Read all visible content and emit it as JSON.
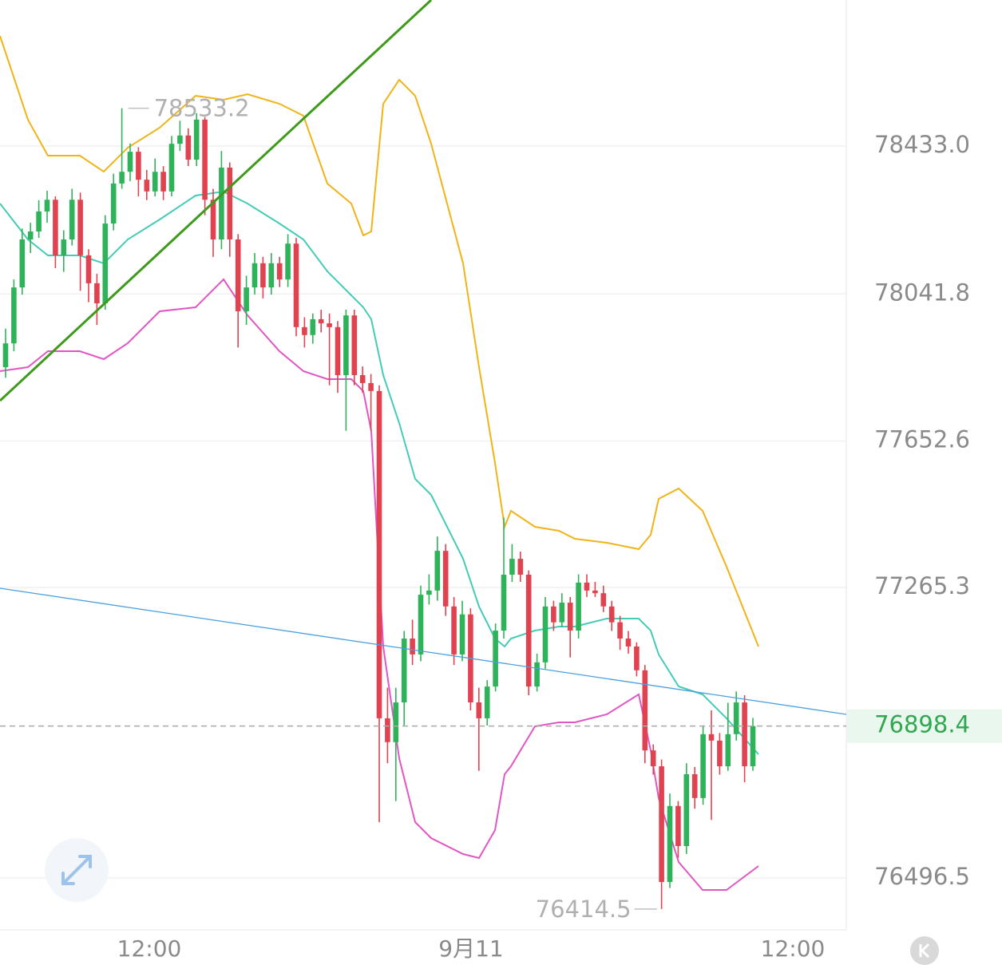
{
  "chart_data": {
    "type": "candlestick",
    "up_color": "#2fb35a",
    "down_color": "#e0434f",
    "xlim": [
      -0.673,
      101.25
    ],
    "ylim": [
      76359.2,
      78819.5
    ],
    "yticks": [
      {
        "value": 78433,
        "label": "78433.0"
      },
      78041.8,
      77652.6,
      77265.3,
      76496.5
    ],
    "xticks": [
      {
        "value": 17.31,
        "label": "12:00"
      },
      {
        "value": 56.06,
        "label": "9月11"
      },
      {
        "value": 94.81,
        "label": "12:00"
      }
    ],
    "grid": true,
    "last_price": 76898.4,
    "high_marker": 78533.2,
    "low_marker": 76414.5,
    "ohlc": [
      [
        77848,
        77950,
        77820,
        77911
      ],
      [
        77911,
        78080,
        77890,
        78059
      ],
      [
        78059,
        78215,
        78040,
        78186
      ],
      [
        78186,
        78230,
        78150,
        78207
      ],
      [
        78207,
        78290,
        78190,
        78260
      ],
      [
        78260,
        78315,
        78230,
        78291
      ],
      [
        78291,
        78300,
        78110,
        78144
      ],
      [
        78144,
        78210,
        78100,
        78186
      ],
      [
        78186,
        78320,
        78170,
        78291
      ],
      [
        78291,
        78310,
        78050,
        78144
      ],
      [
        78144,
        78160,
        78020,
        78070
      ],
      [
        78070,
        78095,
        77960,
        78017
      ],
      [
        78017,
        78250,
        78000,
        78228
      ],
      [
        78228,
        78360,
        78210,
        78334
      ],
      [
        78334,
        78533.2,
        78320,
        78365
      ],
      [
        78365,
        78440,
        78340,
        78418
      ],
      [
        78418,
        78430,
        78300,
        78344
      ],
      [
        78344,
        78370,
        78290,
        78313
      ],
      [
        78313,
        78400,
        78300,
        78365
      ],
      [
        78365,
        78380,
        78290,
        78313
      ],
      [
        78313,
        78460,
        78300,
        78439
      ],
      [
        78439,
        78500,
        78420,
        78461
      ],
      [
        78461,
        78480,
        78380,
        78397
      ],
      [
        78397,
        78520,
        78380,
        78503
      ],
      [
        78503,
        78510,
        78250,
        78291
      ],
      [
        78291,
        78320,
        78140,
        78186
      ],
      [
        78186,
        78420,
        78160,
        78376
      ],
      [
        78376,
        78390,
        78140,
        78186
      ],
      [
        78186,
        78200,
        77900,
        77996
      ],
      [
        77996,
        78090,
        77960,
        78059
      ],
      [
        78059,
        78150,
        78040,
        78123
      ],
      [
        78123,
        78140,
        78030,
        78059
      ],
      [
        78059,
        78150,
        78040,
        78123
      ],
      [
        78123,
        78140,
        78060,
        78080
      ],
      [
        78080,
        78200,
        78060,
        78175
      ],
      [
        78175,
        78190,
        77930,
        77954
      ],
      [
        77954,
        77980,
        77900,
        77933
      ],
      [
        77933,
        77990,
        77910,
        77975
      ],
      [
        77975,
        78000,
        77940,
        77964
      ],
      [
        77964,
        77990,
        77800,
        77954
      ],
      [
        77954,
        77970,
        77780,
        77827
      ],
      [
        77827,
        78000,
        77680,
        77985
      ],
      [
        77985,
        78000,
        77800,
        77827
      ],
      [
        77827,
        77850,
        77780,
        77806
      ],
      [
        77806,
        77830,
        77680,
        77785
      ],
      [
        77785,
        77800,
        76644,
        76919
      ],
      [
        76919,
        77000,
        76800,
        76856
      ],
      [
        76856,
        77000,
        76700,
        76961
      ],
      [
        76961,
        77150,
        76900,
        77130
      ],
      [
        77130,
        77180,
        77060,
        77088
      ],
      [
        77088,
        77270,
        77070,
        77246
      ],
      [
        77246,
        77300,
        77220,
        77257
      ],
      [
        77257,
        77400,
        77230,
        77362
      ],
      [
        77362,
        77380,
        77190,
        77215
      ],
      [
        77215,
        77240,
        77060,
        77088
      ],
      [
        77088,
        77230,
        77070,
        77194
      ],
      [
        77194,
        77210,
        76940,
        76961
      ],
      [
        76961,
        77000,
        76780,
        76919
      ],
      [
        76919,
        77020,
        76900,
        77003
      ],
      [
        77003,
        77170,
        76990,
        77151
      ],
      [
        77151,
        77450,
        77130,
        77299
      ],
      [
        77299,
        77380,
        77280,
        77341
      ],
      [
        77341,
        77360,
        77280,
        77299
      ],
      [
        77299,
        77310,
        76980,
        77003
      ],
      [
        77003,
        77090,
        76990,
        77067
      ],
      [
        77067,
        77240,
        77050,
        77215
      ],
      [
        77215,
        77230,
        77150,
        77173
      ],
      [
        77173,
        77250,
        77160,
        77225
      ],
      [
        77225,
        77240,
        77080,
        77151
      ],
      [
        77151,
        77300,
        77130,
        77278
      ],
      [
        77278,
        77300,
        77240,
        77257
      ],
      [
        77257,
        77280,
        77240,
        77250
      ],
      [
        77250,
        77270,
        77200,
        77215
      ],
      [
        77215,
        77230,
        77150,
        77173
      ],
      [
        77173,
        77190,
        77100,
        77130
      ],
      [
        77130,
        77150,
        77090,
        77109
      ],
      [
        77109,
        77120,
        77030,
        77046
      ],
      [
        77046,
        77060,
        76800,
        76834
      ],
      [
        76834,
        76850,
        76770,
        76792
      ],
      [
        76792,
        76810,
        76414.5,
        76486
      ],
      [
        76486,
        76720,
        76470,
        76687
      ],
      [
        76687,
        76700,
        76550,
        76581
      ],
      [
        76581,
        76800,
        76560,
        76771
      ],
      [
        76771,
        76790,
        76680,
        76708
      ],
      [
        76708,
        76900,
        76690,
        76877
      ],
      [
        76877,
        76940,
        76650,
        76860
      ],
      [
        76860,
        76880,
        76770,
        76792
      ],
      [
        76792,
        76960,
        76780,
        76877
      ],
      [
        76877,
        76990,
        76860,
        76961
      ],
      [
        76961,
        76980,
        76750,
        76792
      ],
      [
        76792,
        76920,
        76780,
        76898.4
      ]
    ],
    "band_x": [
      -0.67,
      2.69,
      5.1,
      8.94,
      11.83,
      14.71,
      18.56,
      22.88,
      26.25,
      29.13,
      32.98,
      35.87,
      38.75,
      41.63,
      43.08,
      44.04,
      45.48,
      47.4,
      49.33,
      51.25,
      55.1,
      57.02,
      58.94,
      60.1,
      60.87,
      63.75,
      66.63,
      68.56,
      72.4,
      76.25,
      77.69,
      78.65,
      81.06,
      83.94,
      86.83,
      90.67
    ],
    "bands": [
      {
        "color": "#f0b418",
        "values": [
          78724.5,
          78502.7,
          78407.7,
          78407.7,
          78365.5,
          78428.8,
          78481.6,
          78566.1,
          78555.5,
          78570.3,
          78545.0,
          78513.3,
          78333.8,
          78281.0,
          78196.5,
          78207.1,
          78545.0,
          78608.3,
          78566.1,
          78439.4,
          78122.6,
          77848.1,
          77594.7,
          77425.7,
          77467.9,
          77425.7,
          77415.2,
          77394.0,
          77383.5,
          77366.6,
          77404.6,
          77499.6,
          77527.1,
          77467.9,
          77320.1,
          77108.9
        ]
      },
      {
        "color": "#45cbb6",
        "values": [
          78281.0,
          78186.0,
          78143.7,
          78143.7,
          78122.6,
          78186.0,
          78238.8,
          78302.1,
          78312.7,
          78281.0,
          78228.2,
          78186.0,
          78101.5,
          78038.1,
          78006.5,
          77974.8,
          77827.0,
          77700.2,
          77552.4,
          77510.2,
          77341.2,
          77214.5,
          77130.1,
          77108.9,
          77130.1,
          77151.2,
          77161.7,
          77161.7,
          77182.9,
          77182.9,
          77151.2,
          77087.8,
          77003.4,
          76982.2,
          76918.9,
          76823.8
        ]
      },
      {
        "color": "#e056c4",
        "values": [
          77837.5,
          77848.1,
          77890.3,
          77890.3,
          77869.2,
          77911.4,
          77995.9,
          78006.5,
          78080.4,
          77985.3,
          77890.3,
          77837.5,
          77816.4,
          77816.4,
          77784.7,
          77679.1,
          77108.9,
          76813.3,
          76644.3,
          76602.1,
          76559.9,
          76549.3,
          76623.2,
          76771.1,
          76792.2,
          76897.8,
          76908.3,
          76908.3,
          76929.4,
          76982.2,
          76834.4,
          76707.7,
          76538.8,
          76464.8,
          76464.8,
          76528.2
        ]
      }
    ],
    "trend_lines": [
      {
        "color": "#3f9a1c",
        "x": [
          -0.673,
          51.25
        ],
        "values": [
          77759.4,
          78819.5
        ]
      },
      {
        "color": "#4aa0e0",
        "x": [
          -0.673,
          101.25
        ],
        "values": [
          77263.1,
          76929.4
        ]
      }
    ]
  }
}
